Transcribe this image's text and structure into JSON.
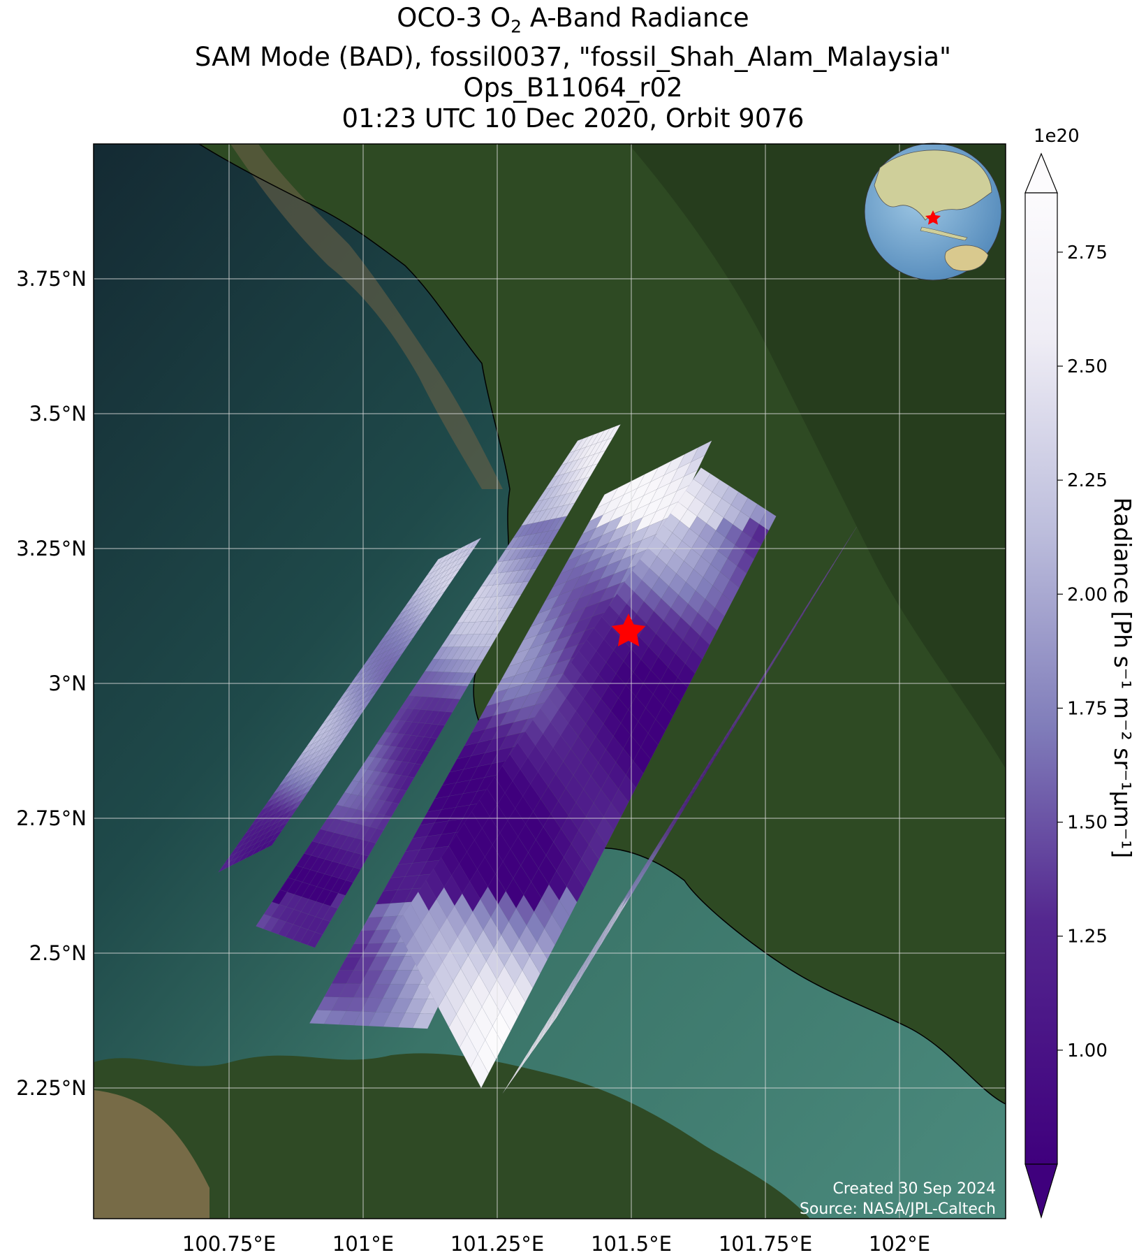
{
  "title": {
    "line1_prefix": "OCO-3 O",
    "line1_sub": "2",
    "line1_suffix": " A-Band Radiance",
    "line2": "SAM Mode (BAD), fossil0037, \"fossil_Shah_Alam_Malaysia\"",
    "line3": "Ops_B11064_r02",
    "line4": "01:23 UTC 10 Dec 2020, Orbit 9076"
  },
  "chart_data": {
    "type": "heatmap",
    "description_variable": "O2 A-Band Radiance",
    "x_axis": {
      "ticks": [
        100.75,
        101.0,
        101.25,
        101.5,
        101.75,
        102.0
      ],
      "tick_labels": [
        "100.75°E",
        "101°E",
        "101.25°E",
        "101.5°E",
        "101.75°E",
        "102°E"
      ],
      "range": [
        100.5,
        102.2
      ]
    },
    "y_axis": {
      "ticks": [
        2.25,
        2.5,
        2.75,
        3.0,
        3.25,
        3.5,
        3.75
      ],
      "tick_labels": [
        "2.25°N",
        "2.5°N",
        "2.75°N",
        "3°N",
        "3.25°N",
        "3.5°N",
        "3.75°N"
      ],
      "range": [
        2.0,
        4.0
      ]
    },
    "grid": true,
    "target": {
      "lon": 101.5,
      "lat": 3.09,
      "marker": "red star"
    },
    "colorbar": {
      "label_prefix": "Radiance [Ph s",
      "label_display": "Radiance [Ph s⁻¹ m⁻² sr⁻¹µm⁻¹]",
      "multiplier": "1e20",
      "ticks": [
        1.0,
        1.25,
        1.5,
        1.75,
        2.0,
        2.25,
        2.5,
        2.75
      ],
      "tick_labels": [
        "1.00",
        "1.25",
        "1.50",
        "1.75",
        "2.00",
        "2.25",
        "2.50",
        "2.75"
      ],
      "range": [
        0.75,
        2.88
      ],
      "colormap": "Purples_r",
      "extend": "both"
    },
    "swaths": [
      {
        "name": "swath-1",
        "corners": [
          [
            100.73,
            2.65
          ],
          [
            101.14,
            3.23
          ],
          [
            101.22,
            3.27
          ],
          [
            100.83,
            2.7
          ]
        ],
        "value_range": [
          0.8,
          2.8
        ]
      },
      {
        "name": "swath-2",
        "corners": [
          [
            100.8,
            2.55
          ],
          [
            101.4,
            3.45
          ],
          [
            101.48,
            3.48
          ],
          [
            100.91,
            2.51
          ]
        ],
        "value_range": [
          0.8,
          2.8
        ]
      },
      {
        "name": "swath-3",
        "corners": [
          [
            100.9,
            2.37
          ],
          [
            101.45,
            3.35
          ],
          [
            101.65,
            3.45
          ],
          [
            101.12,
            2.36
          ]
        ],
        "value_range": [
          0.8,
          2.8
        ]
      },
      {
        "name": "swath-4",
        "corners": [
          [
            101.06,
            2.55
          ],
          [
            101.63,
            3.4
          ],
          [
            101.77,
            3.31
          ],
          [
            101.22,
            2.25
          ]
        ],
        "value_range": [
          0.8,
          2.8
        ]
      },
      {
        "name": "swath-5",
        "corners": [
          [
            101.26,
            2.24
          ],
          [
            101.85,
            3.18
          ],
          [
            101.92,
            3.29
          ],
          [
            101.36,
            2.38
          ]
        ],
        "value_range": [
          0.8,
          2.8
        ]
      }
    ]
  },
  "credit": {
    "line1": "Created 30 Sep 2024",
    "line2": "Source: NASA/JPL-Caltech"
  },
  "colors": {
    "ocean_dark": "#183039",
    "ocean_teal": "#3c7a70",
    "land": "#2f4a25",
    "sediment": "#7d6a4a",
    "purple_dark": "#3f007d",
    "purple_light": "#fcfbfd",
    "star": "#ff0000"
  }
}
